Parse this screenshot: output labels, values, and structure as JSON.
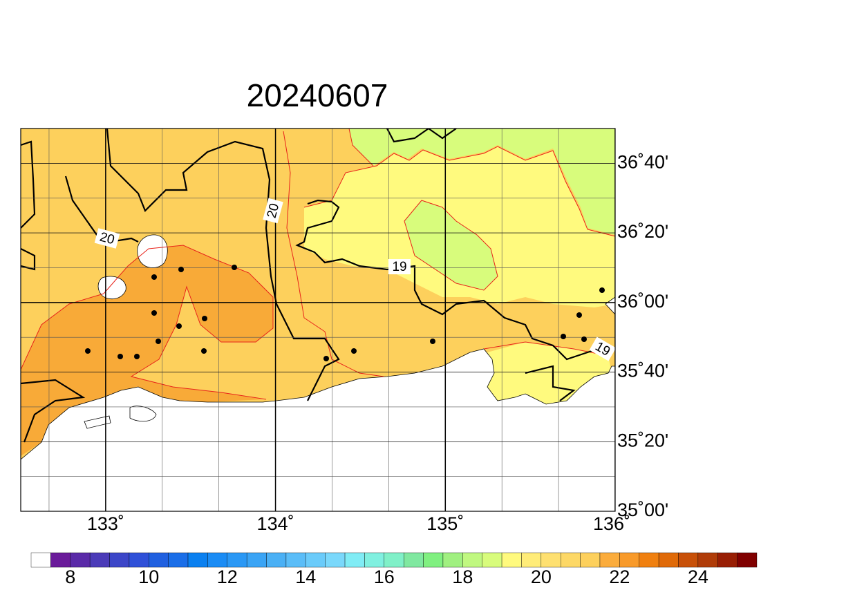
{
  "title": "20240607",
  "map": {
    "xlim": [
      132.5,
      136
    ],
    "ylim": [
      35,
      36.8333
    ],
    "xticks": [
      {
        "value": 133,
        "label": "133˚"
      },
      {
        "value": 134,
        "label": "134˚"
      },
      {
        "value": 135,
        "label": "135˚"
      },
      {
        "value": 136,
        "label": "136˚"
      }
    ],
    "yticks": [
      {
        "value": 35,
        "label": "35˚00'"
      },
      {
        "value": 35.3333,
        "label": "35˚20'"
      },
      {
        "value": 35.6667,
        "label": "35˚40'"
      },
      {
        "value": 36,
        "label": "36˚00'"
      },
      {
        "value": 36.3333,
        "label": "36˚20'"
      },
      {
        "value": 36.6667,
        "label": "36˚40'"
      }
    ],
    "contour_labels": [
      "20",
      "20",
      "19",
      "19"
    ]
  },
  "colorbar": {
    "lim": [
      7,
      25.5
    ],
    "ticks": [
      8,
      10,
      12,
      14,
      16,
      18,
      20,
      22,
      24
    ],
    "colors": [
      "#ffffff",
      "#6a1b9a",
      "#5a2aa8",
      "#4b3bb8",
      "#3c46c8",
      "#2f50d8",
      "#2060e0",
      "#1a6ee8",
      "#0a80f0",
      "#1a8cf5",
      "#2a98f5",
      "#3aa4f5",
      "#4ab0f5",
      "#5abdf8",
      "#6acbfa",
      "#7ad8fb",
      "#80ecf5",
      "#80f0e0",
      "#80f0c8",
      "#80e8a0",
      "#80f080",
      "#a0f080",
      "#c0f880",
      "#d8fc7c",
      "#fffa7e",
      "#ffec78",
      "#fee070",
      "#fdd866",
      "#fdd05c",
      "#fbac3c",
      "#f89a2a",
      "#f08010",
      "#e06a08",
      "#c85008",
      "#b03c08",
      "#981e04",
      "#800000"
    ]
  }
}
